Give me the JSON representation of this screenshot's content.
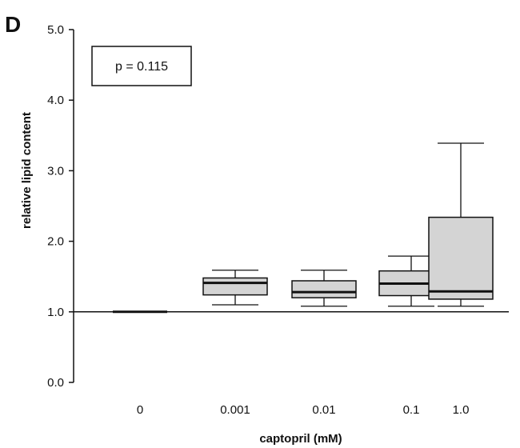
{
  "panel_label": "D",
  "annotation": {
    "text": "p = 0.115"
  },
  "chart_data": {
    "type": "box",
    "title": "",
    "xlabel": "captopril (mM)",
    "ylabel": "relative lipid content",
    "categories": [
      "0",
      "0.001",
      "0.01",
      "0.1",
      "1.0"
    ],
    "ylim": [
      0.0,
      5.0
    ],
    "yticks": [
      "0.0",
      "1.0",
      "2.0",
      "3.0",
      "4.0",
      "5.0"
    ],
    "reference_line": 1.0,
    "grid": false,
    "box_fill": "#d4d4d4",
    "boxes": [
      {
        "category": "0",
        "min": 1.0,
        "q1": 1.0,
        "median": 1.0,
        "q3": 1.0,
        "max": 1.0
      },
      {
        "category": "0.001",
        "min": 1.1,
        "q1": 1.24,
        "median": 1.41,
        "q3": 1.48,
        "max": 1.59
      },
      {
        "category": "0.01",
        "min": 1.08,
        "q1": 1.2,
        "median": 1.28,
        "q3": 1.44,
        "max": 1.59
      },
      {
        "category": "0.1",
        "min": 1.08,
        "q1": 1.23,
        "median": 1.4,
        "q3": 1.58,
        "max": 1.79
      },
      {
        "category": "1.0",
        "min": 1.08,
        "q1": 1.18,
        "median": 1.29,
        "q3": 2.34,
        "max": 3.39
      }
    ]
  }
}
